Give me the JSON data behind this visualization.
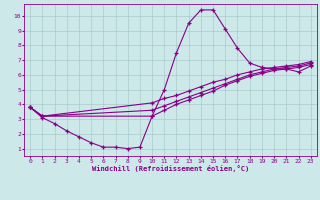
{
  "xlabel": "Windchill (Refroidissement éolien,°C)",
  "bg_color": "#cce8e8",
  "grid_color": "#aacccc",
  "line_color": "#880088",
  "xlim": [
    -0.5,
    23.5
  ],
  "ylim": [
    0.5,
    10.8
  ],
  "xticks": [
    0,
    1,
    2,
    3,
    4,
    5,
    6,
    7,
    8,
    9,
    10,
    11,
    12,
    13,
    14,
    15,
    16,
    17,
    18,
    19,
    20,
    21,
    22,
    23
  ],
  "yticks": [
    1,
    2,
    3,
    4,
    5,
    6,
    7,
    8,
    9,
    10
  ],
  "line1_x": [
    0,
    1,
    2,
    3,
    4,
    5,
    6,
    7,
    8,
    9,
    10,
    11,
    12,
    13,
    14,
    15,
    16,
    17,
    18,
    19,
    20,
    21,
    22,
    23
  ],
  "line1_y": [
    3.8,
    3.1,
    2.7,
    2.2,
    1.8,
    1.4,
    1.1,
    1.1,
    1.0,
    1.1,
    3.2,
    5.0,
    7.5,
    9.5,
    10.4,
    10.4,
    9.1,
    7.8,
    6.8,
    6.5,
    6.4,
    6.4,
    6.2,
    6.6
  ],
  "line2_x": [
    0,
    1,
    10,
    11,
    12,
    13,
    14,
    15,
    16,
    17,
    18,
    19,
    20,
    21,
    22,
    23
  ],
  "line2_y": [
    3.8,
    3.2,
    3.2,
    3.6,
    4.0,
    4.3,
    4.6,
    4.9,
    5.3,
    5.6,
    5.9,
    6.1,
    6.3,
    6.4,
    6.5,
    6.7
  ],
  "line3_x": [
    0,
    1,
    10,
    11,
    12,
    13,
    14,
    15,
    16,
    17,
    18,
    19,
    20,
    21,
    22,
    23
  ],
  "line3_y": [
    3.8,
    3.2,
    3.6,
    3.9,
    4.2,
    4.5,
    4.8,
    5.1,
    5.4,
    5.7,
    6.0,
    6.2,
    6.4,
    6.5,
    6.6,
    6.8
  ],
  "line4_x": [
    0,
    1,
    10,
    11,
    12,
    13,
    14,
    15,
    16,
    17,
    18,
    19,
    20,
    21,
    22,
    23
  ],
  "line4_y": [
    3.8,
    3.2,
    4.1,
    4.4,
    4.6,
    4.9,
    5.2,
    5.5,
    5.7,
    6.0,
    6.2,
    6.4,
    6.5,
    6.6,
    6.7,
    6.9
  ]
}
